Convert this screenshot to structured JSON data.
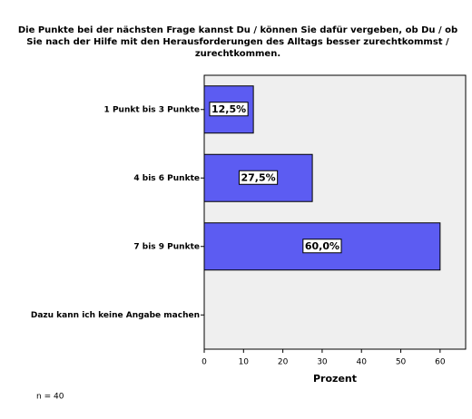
{
  "chart_data": {
    "type": "bar",
    "orientation": "horizontal",
    "title": [
      "Die Punkte bei der nächsten Frage kannst Du / können Sie dafür vergeben, ob Du / ob",
      "Sie nach der Hilfe mit den Herausforderungen des Alltags besser zurechtkommst /",
      "zurechtkommen."
    ],
    "categories": [
      "1 Punkt bis 3 Punkte",
      "4 bis 6 Punkte",
      "7 bis 9 Punkte",
      "Dazu kann ich keine Angabe machen"
    ],
    "values": [
      12.5,
      27.5,
      60.0,
      0
    ],
    "value_labels": [
      "12,5%",
      "27,5%",
      "60,0%",
      null
    ],
    "color": "#5c5cf2",
    "xlabel": "Prozent",
    "xlim": [
      0,
      66.5
    ],
    "xticks": [
      0,
      10,
      20,
      30,
      40,
      50,
      60
    ],
    "annotation": "n = 40"
  }
}
